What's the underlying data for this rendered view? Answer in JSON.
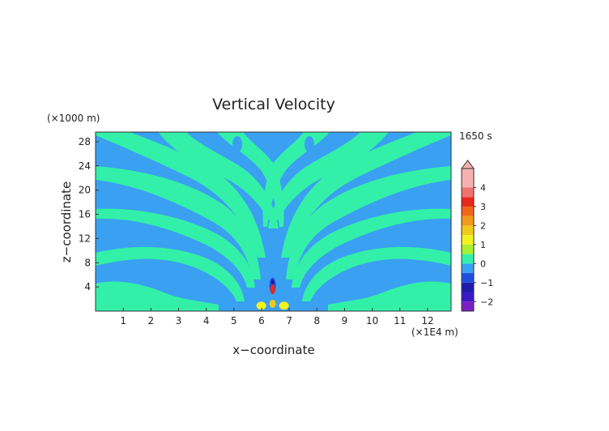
{
  "chart_data": {
    "type": "heatmap",
    "title": "Vertical Velocity",
    "xlabel": "x−coordinate",
    "ylabel": "z−coordinate",
    "x_unit": "(×1E4 m)",
    "y_unit": "(×1000 m)",
    "time_label": "1650 s",
    "xlim": [
      0,
      12.85
    ],
    "ylim": [
      0,
      29.6
    ],
    "x_ticks": [
      "1",
      "2",
      "3",
      "4",
      "5",
      "6",
      "7",
      "8",
      "9",
      "10",
      "11",
      "12"
    ],
    "y_ticks": [
      "4",
      "8",
      "12",
      "16",
      "20",
      "24",
      "28"
    ],
    "colorbar": {
      "tick_labels": [
        "4",
        "3",
        "2",
        "1",
        "0",
        "−1",
        "−2"
      ],
      "range": [
        -2.5,
        5
      ],
      "bands": [
        {
          "from": -2.5,
          "to": -2.0,
          "color": "#7a1fc0"
        },
        {
          "from": -2.0,
          "to": -1.5,
          "color": "#3a18c8"
        },
        {
          "from": -1.5,
          "to": -1.0,
          "color": "#1c1ca8"
        },
        {
          "from": -1.0,
          "to": -0.5,
          "color": "#1f4fe0"
        },
        {
          "from": -0.5,
          "to": 0.0,
          "color": "#3aa0f2"
        },
        {
          "from": 0.0,
          "to": 0.5,
          "color": "#33f0a8"
        },
        {
          "from": 0.5,
          "to": 1.0,
          "color": "#a8f030"
        },
        {
          "from": 1.0,
          "to": 1.5,
          "color": "#f2f21e"
        },
        {
          "from": 1.5,
          "to": 2.0,
          "color": "#f2c81a"
        },
        {
          "from": 2.0,
          "to": 2.5,
          "color": "#f29a1a"
        },
        {
          "from": 2.5,
          "to": 3.0,
          "color": "#f2661a"
        },
        {
          "from": 3.0,
          "to": 3.5,
          "color": "#e8281a"
        },
        {
          "from": 3.5,
          "to": 4.0,
          "color": "#f07070"
        },
        {
          "from": 4.0,
          "to": 5.0,
          "color": "#f6b0b0"
        }
      ]
    },
    "colors": {
      "negative_field": "#3aa0f2",
      "positive_field": "#33f0a8"
    }
  }
}
